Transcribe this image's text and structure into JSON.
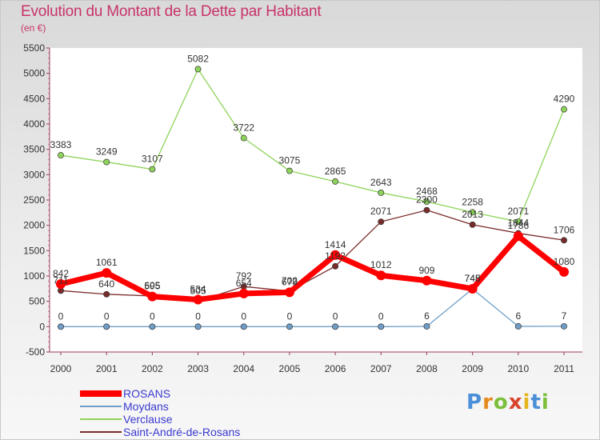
{
  "title": "Evolution du Montant de la Dette par Habitant",
  "unit_label": "(en €)",
  "chart_data": {
    "type": "line",
    "x": [
      "2000",
      "2001",
      "2002",
      "2003",
      "2004",
      "2005",
      "2006",
      "2007",
      "2008",
      "2009",
      "2010",
      "2011"
    ],
    "ylim": [
      -500,
      5500
    ],
    "yticks": [
      -500,
      0,
      500,
      1000,
      1500,
      2000,
      2500,
      3000,
      3500,
      4000,
      4500,
      5000,
      5500
    ],
    "grid": false,
    "legend_position": "bottom-left",
    "series": [
      {
        "name": "ROSANS",
        "color": "#ff0000",
        "values": [
          842,
          1061,
          595,
          534,
          654,
          679,
          1414,
          1012,
          909,
          748,
          1786,
          1080
        ],
        "labels": [
          "842",
          "1061",
          "595",
          "534",
          "654",
          "679",
          "1414",
          "1012",
          "909",
          "748",
          "1786",
          "1080"
        ]
      },
      {
        "name": "Moydans",
        "color": "#6f9fc8",
        "values": [
          0,
          0,
          0,
          0,
          0,
          0,
          0,
          0,
          6,
          745,
          6,
          7
        ],
        "labels": [
          "0",
          "0",
          "0",
          "0",
          "0",
          "0",
          "0",
          "0",
          "6",
          "745",
          "6",
          "7"
        ]
      },
      {
        "name": "Verclause",
        "color": "#8fd45a",
        "values": [
          3383,
          3249,
          3107,
          5082,
          3722,
          3075,
          2865,
          2643,
          2468,
          2258,
          2071,
          4290
        ],
        "labels": [
          "3383",
          "3249",
          "3107",
          "5082",
          "3722",
          "3075",
          "2865",
          "2643",
          "2468",
          "2258",
          "2071",
          "4290"
        ]
      },
      {
        "name": "Saint-André-de-Rosans",
        "color": "#7a2b2b",
        "values": [
          711,
          640,
          605,
          505,
          792,
          702,
          1192,
          2071,
          2300,
          2013,
          1844,
          1706
        ],
        "labels": [
          "711",
          "640",
          "605",
          "505",
          "792",
          "702",
          "1192",
          "2071",
          "2300",
          "2013",
          "1844",
          "1706"
        ]
      }
    ]
  },
  "logo_text": "Proxiti"
}
